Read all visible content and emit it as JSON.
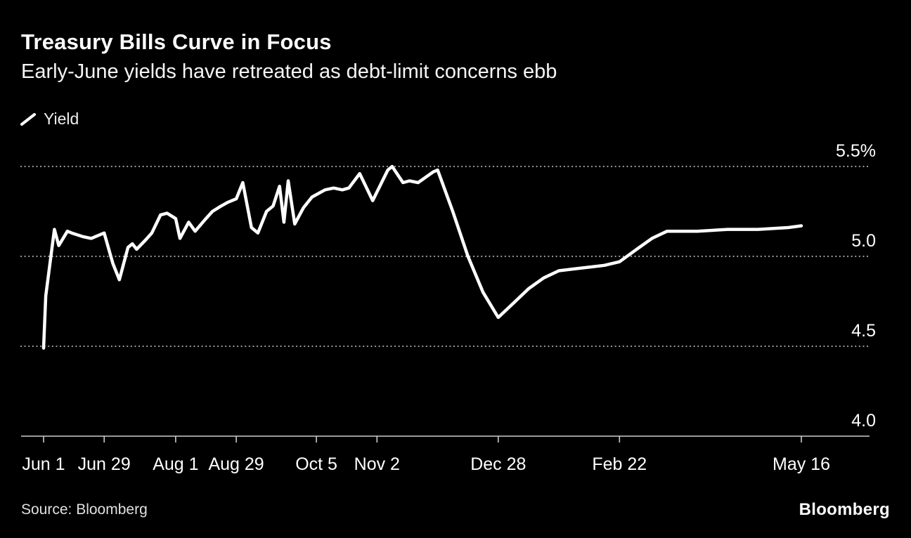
{
  "chart_data": {
    "type": "line",
    "title": "Treasury Bills Curve in Focus",
    "subtitle": "Early-June yields have retreated as debt-limit concerns ebb",
    "legend": [
      {
        "label": "Yield"
      }
    ],
    "source": "Source: Bloomberg",
    "brand": "Bloomberg",
    "colors": {
      "background": "#000000",
      "line": "#ffffff",
      "gridline": "#9a9a9a",
      "axis": "#cccccc",
      "text": "#ffffff"
    },
    "y_axis": {
      "min": 4.0,
      "max": 5.5,
      "grid": "dotted",
      "label_side": "right",
      "ticks": [
        {
          "value": 5.5,
          "label": "5.5%"
        },
        {
          "value": 5.0,
          "label": "5.0"
        },
        {
          "value": 4.5,
          "label": "4.5"
        },
        {
          "value": 4.0,
          "label": "4.0"
        }
      ]
    },
    "x_axis": {
      "start_date": "2023-06-01",
      "end_date": "2024-05-16",
      "ticks": [
        {
          "date": "2023-06-01",
          "label": "Jun 1"
        },
        {
          "date": "2023-06-29",
          "label": "Jun 29"
        },
        {
          "date": "2023-08-01",
          "label": "Aug 1"
        },
        {
          "date": "2023-08-29",
          "label": "Aug 29"
        },
        {
          "date": "2023-10-05",
          "label": "Oct 5"
        },
        {
          "date": "2023-11-02",
          "label": "Nov 2"
        },
        {
          "date": "2023-12-28",
          "label": "Dec 28"
        },
        {
          "date": "2024-02-22",
          "label": "Feb 22"
        },
        {
          "date": "2024-05-16",
          "label": "May 16"
        }
      ]
    },
    "series": [
      {
        "name": "Yield",
        "color": "#ffffff",
        "points": [
          {
            "date": "2023-06-01",
            "value": 4.49
          },
          {
            "date": "2023-06-02",
            "value": 4.78
          },
          {
            "date": "2023-06-06",
            "value": 5.15
          },
          {
            "date": "2023-06-08",
            "value": 5.06
          },
          {
            "date": "2023-06-12",
            "value": 5.14
          },
          {
            "date": "2023-06-14",
            "value": 5.13
          },
          {
            "date": "2023-06-19",
            "value": 5.11
          },
          {
            "date": "2023-06-23",
            "value": 5.1
          },
          {
            "date": "2023-06-29",
            "value": 5.13
          },
          {
            "date": "2023-07-03",
            "value": 4.96
          },
          {
            "date": "2023-07-06",
            "value": 4.87
          },
          {
            "date": "2023-07-10",
            "value": 5.05
          },
          {
            "date": "2023-07-12",
            "value": 5.07
          },
          {
            "date": "2023-07-14",
            "value": 5.04
          },
          {
            "date": "2023-07-18",
            "value": 5.09
          },
          {
            "date": "2023-07-21",
            "value": 5.13
          },
          {
            "date": "2023-07-25",
            "value": 5.23
          },
          {
            "date": "2023-07-28",
            "value": 5.24
          },
          {
            "date": "2023-08-01",
            "value": 5.21
          },
          {
            "date": "2023-08-03",
            "value": 5.1
          },
          {
            "date": "2023-08-07",
            "value": 5.19
          },
          {
            "date": "2023-08-10",
            "value": 5.14
          },
          {
            "date": "2023-08-15",
            "value": 5.21
          },
          {
            "date": "2023-08-18",
            "value": 5.25
          },
          {
            "date": "2023-08-22",
            "value": 5.28
          },
          {
            "date": "2023-08-25",
            "value": 5.3
          },
          {
            "date": "2023-08-29",
            "value": 5.32
          },
          {
            "date": "2023-09-01",
            "value": 5.41
          },
          {
            "date": "2023-09-05",
            "value": 5.16
          },
          {
            "date": "2023-09-08",
            "value": 5.13
          },
          {
            "date": "2023-09-12",
            "value": 5.25
          },
          {
            "date": "2023-09-15",
            "value": 5.28
          },
          {
            "date": "2023-09-18",
            "value": 5.39
          },
          {
            "date": "2023-09-20",
            "value": 5.19
          },
          {
            "date": "2023-09-22",
            "value": 5.42
          },
          {
            "date": "2023-09-25",
            "value": 5.18
          },
          {
            "date": "2023-09-29",
            "value": 5.27
          },
          {
            "date": "2023-10-03",
            "value": 5.33
          },
          {
            "date": "2023-10-09",
            "value": 5.37
          },
          {
            "date": "2023-10-13",
            "value": 5.38
          },
          {
            "date": "2023-10-17",
            "value": 5.37
          },
          {
            "date": "2023-10-20",
            "value": 5.38
          },
          {
            "date": "2023-10-25",
            "value": 5.46
          },
          {
            "date": "2023-10-31",
            "value": 5.31
          },
          {
            "date": "2023-11-07",
            "value": 5.48
          },
          {
            "date": "2023-11-09",
            "value": 5.5
          },
          {
            "date": "2023-11-14",
            "value": 5.41
          },
          {
            "date": "2023-11-17",
            "value": 5.42
          },
          {
            "date": "2023-11-21",
            "value": 5.41
          },
          {
            "date": "2023-11-28",
            "value": 5.47
          },
          {
            "date": "2023-11-30",
            "value": 5.48
          },
          {
            "date": "2023-12-07",
            "value": 5.25
          },
          {
            "date": "2023-12-14",
            "value": 5.0
          },
          {
            "date": "2023-12-21",
            "value": 4.8
          },
          {
            "date": "2023-12-28",
            "value": 4.66
          },
          {
            "date": "2024-01-04",
            "value": 4.74
          },
          {
            "date": "2024-01-11",
            "value": 4.82
          },
          {
            "date": "2024-01-18",
            "value": 4.88
          },
          {
            "date": "2024-01-25",
            "value": 4.92
          },
          {
            "date": "2024-02-01",
            "value": 4.93
          },
          {
            "date": "2024-02-08",
            "value": 4.94
          },
          {
            "date": "2024-02-15",
            "value": 4.95
          },
          {
            "date": "2024-02-22",
            "value": 4.97
          },
          {
            "date": "2024-03-01",
            "value": 5.04
          },
          {
            "date": "2024-03-08",
            "value": 5.1
          },
          {
            "date": "2024-03-15",
            "value": 5.14
          },
          {
            "date": "2024-03-29",
            "value": 5.14
          },
          {
            "date": "2024-04-12",
            "value": 5.15
          },
          {
            "date": "2024-04-26",
            "value": 5.15
          },
          {
            "date": "2024-05-10",
            "value": 5.16
          },
          {
            "date": "2024-05-16",
            "value": 5.17
          }
        ]
      }
    ]
  }
}
